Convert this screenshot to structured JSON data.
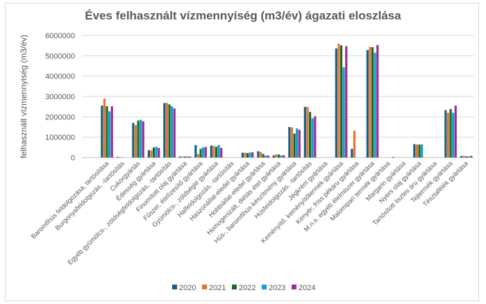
{
  "chart_data": {
    "type": "bar",
    "title": "Éves felhasznált vízmennyiség (m3/év) ágazati eloszlása",
    "xlabel": "",
    "ylabel": "felhasznált vízmennyiség (m3/év)",
    "ylim": [
      0,
      6000000
    ],
    "yticks": [
      "0",
      "1000000",
      "2000000",
      "3000000",
      "4000000",
      "5000000",
      "6000000"
    ],
    "grid": true,
    "legend_position": "bottom",
    "categories": [
      "Baromfihús feldolgozása, tartósítása",
      "Burgonyafeldolgozás, -tartósítás",
      "Cukorgyártás",
      "Édesség gyártása",
      "Egyéb gyümölcs-, zöldségfeldolgozás, -tartósítás",
      "Finomított olaj gyártása",
      "Fűszer, ételízesítő gyártása",
      "Gyümölcs-, zöldséglé gyártása",
      "Halfeldolgozás, -tartósítás",
      "Haszonállat-eledel gyártása",
      "Hobbiállat-eledel gyártása",
      "Homogenizált, diétás étel gyártása",
      "Hús-, baromfihús-készítmény gyártása",
      "Húsfeldolgozás, -tartósítás",
      "Jégkrém gyártása",
      "Keményítő, keményítőtermék gyártása",
      "Kenyér; friss pékáru gyártása",
      "M.n.s. egyéb élelmiszer gyártása",
      "Malomipari termék gyártása",
      "Margarin gyártása",
      "Nyers olaj gyártása",
      "Tartósított lisztes áru gyártása",
      "Tejtermék gyártása",
      "Tésztafélék gyártása"
    ],
    "series": [
      {
        "name": "2020",
        "color": "#156082",
        "values": [
          2550000,
          30000,
          1700000,
          360000,
          2680000,
          50000,
          610000,
          590000,
          0,
          240000,
          310000,
          110000,
          1500000,
          2490000,
          0,
          5360000,
          430000,
          5280000,
          0,
          0,
          660000,
          0,
          2330000,
          80000
        ]
      },
      {
        "name": "2021",
        "color": "#E97132",
        "values": [
          2900000,
          30000,
          1590000,
          360000,
          2680000,
          50000,
          180000,
          570000,
          0,
          240000,
          280000,
          150000,
          1480000,
          2490000,
          0,
          5590000,
          1320000,
          5440000,
          0,
          0,
          640000,
          0,
          2200000,
          80000
        ]
      },
      {
        "name": "2022",
        "color": "#196B24",
        "values": [
          2520000,
          0,
          1820000,
          500000,
          2610000,
          50000,
          430000,
          530000,
          0,
          220000,
          180000,
          150000,
          1180000,
          2240000,
          0,
          5510000,
          0,
          5420000,
          0,
          0,
          640000,
          0,
          2380000,
          60000
        ]
      },
      {
        "name": "2023",
        "color": "#0F9ED5",
        "values": [
          2270000,
          0,
          1860000,
          530000,
          2520000,
          60000,
          500000,
          620000,
          0,
          250000,
          100000,
          110000,
          1430000,
          1930000,
          0,
          4430000,
          0,
          5150000,
          0,
          0,
          640000,
          0,
          2200000,
          60000
        ]
      },
      {
        "name": "2024",
        "color": "#A02B93",
        "values": [
          2520000,
          0,
          1780000,
          470000,
          2410000,
          50000,
          520000,
          470000,
          0,
          260000,
          100000,
          110000,
          1360000,
          2030000,
          0,
          5470000,
          0,
          5530000,
          30000,
          0,
          0,
          0,
          2550000,
          80000
        ]
      }
    ]
  }
}
